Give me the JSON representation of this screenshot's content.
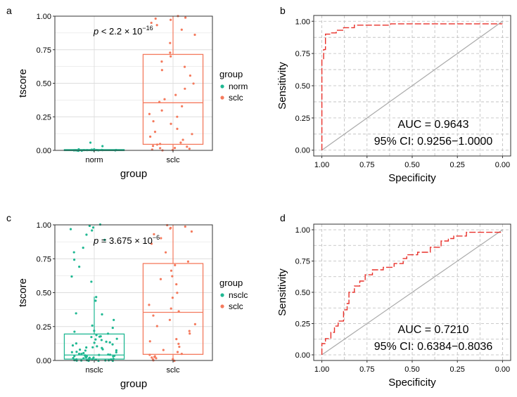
{
  "colors": {
    "norm": "#1FB892",
    "nsclc": "#1FB892",
    "sclc": "#F47A5D",
    "roc": "#E8302A",
    "diagonal": "#AAAAAA",
    "grid": "#BBBBBB"
  },
  "chart_data": [
    {
      "panel": "a",
      "type": "box",
      "xlabel": "group",
      "ylabel": "tscore",
      "ylim": [
        0,
        1
      ],
      "yticks": [
        "0.00",
        "0.25",
        "0.50",
        "0.75",
        "1.00"
      ],
      "categories": [
        "norm",
        "sclc"
      ],
      "p_prefix": "p",
      "p_text": " <  2.2  × 10",
      "p_exp": "−16",
      "legend": {
        "title": "group",
        "entries": [
          "norm",
          "sclc"
        ]
      },
      "boxes": [
        {
          "name": "norm",
          "q1": 0.0,
          "median": 0.002,
          "q3": 0.006,
          "lower": 0.0,
          "upper": 0.01
        },
        {
          "name": "sclc",
          "q1": 0.045,
          "median": 0.355,
          "q3": 0.715,
          "lower": 0.0,
          "upper": 1.0
        }
      ],
      "points": [
        {
          "name": "norm",
          "y": [
            0.0,
            0.0,
            0.002,
            0.003,
            0.0,
            0.004,
            0.001,
            0.006,
            0.0,
            0.002,
            0.005,
            0.003,
            0.0,
            0.001,
            0.058,
            0.03,
            0.0,
            0.004,
            0.002,
            0.0,
            0.001,
            0.003,
            0.0,
            0.002
          ]
        },
        {
          "name": "sclc",
          "y": [
            1.0,
            0.99,
            0.98,
            0.97,
            0.95,
            0.9,
            0.86,
            0.8,
            0.73,
            0.7,
            0.66,
            0.62,
            0.6,
            0.56,
            0.5,
            0.46,
            0.41,
            0.38,
            0.36,
            0.33,
            0.3,
            0.27,
            0.25,
            0.22,
            0.2,
            0.16,
            0.14,
            0.12,
            0.1,
            0.08,
            0.06,
            0.05,
            0.04,
            0.03,
            0.02,
            0.01,
            0.0,
            0.0,
            0.005,
            0.015,
            0.025,
            0.93
          ]
        }
      ]
    },
    {
      "panel": "b",
      "type": "line",
      "xlabel": "Specificity",
      "ylabel": "Sensitivity",
      "xlim": [
        1,
        0
      ],
      "ylim": [
        0,
        1
      ],
      "xticks": [
        "1.00",
        "0.75",
        "0.50",
        "0.25",
        "0.00"
      ],
      "yticks": [
        "0.00",
        "0.25",
        "0.50",
        "0.75",
        "1.00"
      ],
      "auc_text": "AUC = 0.9643",
      "ci_text": "95% CI: 0.9256−1.0000",
      "roc": {
        "specificity": [
          1.0,
          1.0,
          1.0,
          0.99,
          0.99,
          0.98,
          0.98,
          0.95,
          0.95,
          0.92,
          0.92,
          0.88,
          0.88,
          0.82,
          0.82,
          0.62,
          0.62,
          0.0
        ],
        "sensitivity": [
          0.0,
          0.62,
          0.7,
          0.7,
          0.78,
          0.78,
          0.9,
          0.9,
          0.91,
          0.91,
          0.93,
          0.93,
          0.95,
          0.95,
          0.97,
          0.97,
          0.98,
          0.98
        ]
      }
    },
    {
      "panel": "c",
      "type": "box",
      "xlabel": "group",
      "ylabel": "tscore",
      "ylim": [
        0,
        1
      ],
      "yticks": [
        "0.00",
        "0.25",
        "0.50",
        "0.75",
        "1.00"
      ],
      "categories": [
        "nsclc",
        "sclc"
      ],
      "p_prefix": "p",
      "p_text": " = 3.675 × 10",
      "p_exp": "−6",
      "legend": {
        "title": "group",
        "entries": [
          "nsclc",
          "sclc"
        ]
      },
      "boxes": [
        {
          "name": "nsclc",
          "q1": 0.01,
          "median": 0.04,
          "q3": 0.195,
          "lower": 0.0,
          "upper": 0.47
        },
        {
          "name": "sclc",
          "q1": 0.045,
          "median": 0.355,
          "q3": 0.715,
          "lower": 0.0,
          "upper": 1.0
        }
      ],
      "points": [
        {
          "name": "nsclc",
          "y": [
            1.0,
            0.99,
            0.98,
            0.97,
            0.96,
            0.93,
            0.89,
            0.83,
            0.8,
            0.74,
            0.69,
            0.62,
            0.58,
            0.47,
            0.44,
            0.35,
            0.34,
            0.3,
            0.26,
            0.24,
            0.22,
            0.2,
            0.19,
            0.18,
            0.17,
            0.16,
            0.15,
            0.14,
            0.13,
            0.12,
            0.11,
            0.1,
            0.09,
            0.08,
            0.08,
            0.07,
            0.06,
            0.06,
            0.05,
            0.05,
            0.04,
            0.04,
            0.04,
            0.03,
            0.03,
            0.03,
            0.02,
            0.02,
            0.02,
            0.02,
            0.01,
            0.01,
            0.01,
            0.01,
            0.01,
            0.005,
            0.005,
            0.0,
            0.0,
            0.0,
            0.0,
            0.0,
            0.0,
            0.0,
            0.0,
            0.0,
            0.015,
            0.025,
            0.035,
            0.045,
            0.055,
            0.065,
            0.075,
            0.095,
            0.105,
            0.125,
            0.135,
            0.155,
            0.175,
            0.21
          ]
        },
        {
          "name": "sclc",
          "y": [
            1.0,
            0.99,
            0.98,
            0.97,
            0.95,
            0.9,
            0.86,
            0.8,
            0.73,
            0.7,
            0.66,
            0.62,
            0.6,
            0.56,
            0.5,
            0.46,
            0.41,
            0.38,
            0.36,
            0.33,
            0.3,
            0.27,
            0.25,
            0.22,
            0.2,
            0.16,
            0.14,
            0.12,
            0.1,
            0.08,
            0.06,
            0.05,
            0.04,
            0.03,
            0.02,
            0.01,
            0.0,
            0.0,
            0.005,
            0.015,
            0.025,
            0.93
          ]
        }
      ]
    },
    {
      "panel": "d",
      "type": "line",
      "xlabel": "Specificity",
      "ylabel": "Sensitivity",
      "xlim": [
        1,
        0
      ],
      "ylim": [
        0,
        1
      ],
      "xticks": [
        "1.00",
        "0.75",
        "0.50",
        "0.25",
        "0.00"
      ],
      "yticks": [
        "0.00",
        "0.25",
        "0.50",
        "0.75",
        "1.00"
      ],
      "auc_text": "AUC = 0.7210",
      "ci_text": "95% CI: 0.6384−0.8036",
      "roc": {
        "specificity": [
          1.0,
          1.0,
          0.98,
          0.98,
          0.95,
          0.95,
          0.93,
          0.93,
          0.91,
          0.91,
          0.88,
          0.88,
          0.86,
          0.86,
          0.85,
          0.85,
          0.82,
          0.82,
          0.79,
          0.79,
          0.76,
          0.76,
          0.72,
          0.72,
          0.66,
          0.66,
          0.6,
          0.6,
          0.55,
          0.55,
          0.53,
          0.53,
          0.47,
          0.47,
          0.4,
          0.4,
          0.34,
          0.34,
          0.3,
          0.3,
          0.27,
          0.27,
          0.2,
          0.2,
          0.0
        ],
        "sensitivity": [
          0.0,
          0.09,
          0.09,
          0.13,
          0.13,
          0.18,
          0.18,
          0.23,
          0.23,
          0.27,
          0.27,
          0.36,
          0.36,
          0.41,
          0.41,
          0.5,
          0.5,
          0.55,
          0.55,
          0.59,
          0.59,
          0.64,
          0.64,
          0.68,
          0.68,
          0.7,
          0.7,
          0.73,
          0.73,
          0.77,
          0.77,
          0.8,
          0.8,
          0.82,
          0.82,
          0.86,
          0.86,
          0.91,
          0.91,
          0.93,
          0.93,
          0.95,
          0.95,
          0.98,
          0.98
        ]
      }
    }
  ]
}
